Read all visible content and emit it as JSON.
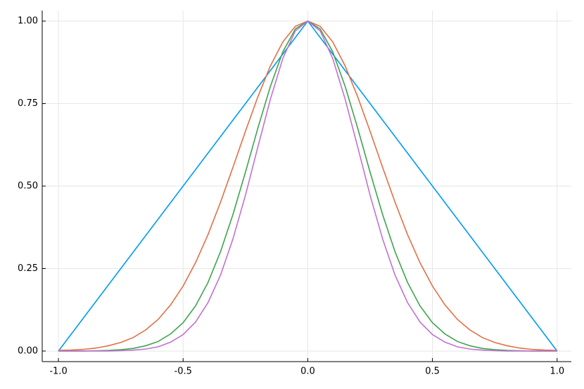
{
  "chart_data": {
    "type": "line",
    "x": [
      -1,
      -0.95,
      -0.9,
      -0.85,
      -0.8,
      -0.75,
      -0.7,
      -0.65,
      -0.6,
      -0.55,
      -0.5,
      -0.45,
      -0.4,
      -0.35,
      -0.3,
      -0.25,
      -0.2,
      -0.15,
      -0.1,
      -0.05,
      0,
      0.05,
      0.1,
      0.15,
      0.2,
      0.25,
      0.3,
      0.35,
      0.4,
      0.45,
      0.5,
      0.55,
      0.6,
      0.65,
      0.7,
      0.75,
      0.8,
      0.85,
      0.9,
      0.95,
      1
    ],
    "series": [
      {
        "color": "#009af9",
        "values": [
          0,
          0.05,
          0.1,
          0.15,
          0.2,
          0.25,
          0.3,
          0.35,
          0.4,
          0.45,
          0.5,
          0.55,
          0.6,
          0.65,
          0.7,
          0.75,
          0.8,
          0.85,
          0.9,
          0.95,
          1,
          0.95,
          0.9,
          0.85,
          0.8,
          0.75,
          0.7,
          0.65,
          0.6,
          0.55,
          0.5,
          0.45,
          0.4,
          0.35,
          0.3,
          0.25,
          0.2,
          0.15,
          0.1,
          0.05,
          0
        ]
      },
      {
        "color": "#e26f46",
        "values": [
          0.002,
          0.003,
          0.005,
          0.009,
          0.016,
          0.026,
          0.041,
          0.064,
          0.096,
          0.14,
          0.197,
          0.268,
          0.353,
          0.451,
          0.557,
          0.666,
          0.771,
          0.864,
          0.937,
          0.984,
          1,
          0.984,
          0.937,
          0.864,
          0.771,
          0.666,
          0.557,
          0.451,
          0.353,
          0.268,
          0.197,
          0.14,
          0.096,
          0.064,
          0.041,
          0.026,
          0.016,
          0.009,
          0.005,
          0.003,
          0.002
        ]
      },
      {
        "color": "#3da44d",
        "values": [
          0,
          0,
          0,
          0.001,
          0.002,
          0.004,
          0.008,
          0.016,
          0.029,
          0.052,
          0.086,
          0.137,
          0.208,
          0.301,
          0.414,
          0.542,
          0.676,
          0.802,
          0.907,
          0.976,
          1,
          0.976,
          0.907,
          0.802,
          0.676,
          0.542,
          0.414,
          0.301,
          0.208,
          0.137,
          0.086,
          0.052,
          0.029,
          0.016,
          0.008,
          0.004,
          0.002,
          0.001,
          0,
          0,
          0
        ]
      },
      {
        "color": "#c271d2",
        "values": [
          0,
          0,
          0,
          0,
          0,
          0.001,
          0.003,
          0.006,
          0.013,
          0.027,
          0.05,
          0.088,
          0.147,
          0.23,
          0.34,
          0.472,
          0.619,
          0.763,
          0.887,
          0.97,
          1,
          0.97,
          0.887,
          0.763,
          0.619,
          0.472,
          0.34,
          0.23,
          0.147,
          0.088,
          0.05,
          0.027,
          0.013,
          0.006,
          0.003,
          0.001,
          0,
          0,
          0,
          0,
          0
        ]
      }
    ],
    "xlim": [
      -1.065,
      1.057
    ],
    "ylim": [
      -0.032,
      1.032
    ],
    "xticks": [
      {
        "value": -1,
        "label": "-1.0"
      },
      -0.5,
      {
        "value": 0,
        "label": "0.0"
      },
      0.5,
      {
        "value": 1,
        "label": "1.0"
      }
    ],
    "yticks": [
      {
        "value": 0,
        "label": "0.00"
      },
      0.25,
      {
        "value": 0.5,
        "label": "0.50"
      },
      0.75,
      {
        "value": 1,
        "label": "1.00"
      }
    ],
    "grid": true
  }
}
